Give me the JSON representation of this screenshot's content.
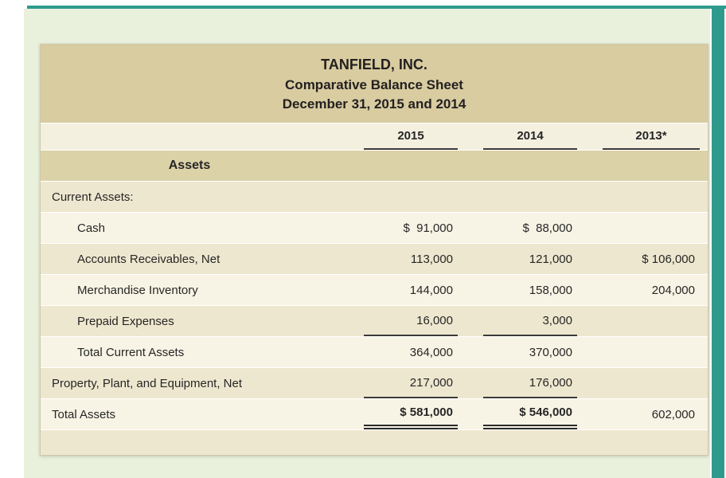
{
  "page": {
    "background_color": "#e9f1dd",
    "accent_color": "#2f9a8c",
    "header_band_color": "#d8cca0"
  },
  "balance_sheet": {
    "title": "TANFIELD, INC.",
    "subtitle": "Comparative Balance Sheet",
    "date_line": "December 31, 2015 and 2014",
    "section_header": "Assets",
    "columns": [
      "2015",
      "2014",
      "2013*"
    ],
    "rows": [
      {
        "label": "Current Assets:",
        "y2015": "",
        "y2014": "",
        "y2013": ""
      },
      {
        "label": "Cash",
        "y2015": "$  91,000",
        "y2014": "$  88,000",
        "y2013": ""
      },
      {
        "label": "Accounts Receivables, Net",
        "y2015": "113,000",
        "y2014": "121,000",
        "y2013": "$ 106,000"
      },
      {
        "label": "Merchandise Inventory",
        "y2015": "144,000",
        "y2014": "158,000",
        "y2013": "204,000"
      },
      {
        "label": "Prepaid Expenses",
        "y2015": "16,000",
        "y2014": "3,000",
        "y2013": ""
      },
      {
        "label": "Total Current Assets",
        "y2015": "364,000",
        "y2014": "370,000",
        "y2013": ""
      },
      {
        "label": "Property, Plant, and Equipment, Net",
        "y2015": "217,000",
        "y2014": "176,000",
        "y2013": ""
      },
      {
        "label": "Total Assets",
        "y2015": "$ 581,000",
        "y2014": "$ 546,000",
        "y2013": "602,000"
      }
    ]
  }
}
